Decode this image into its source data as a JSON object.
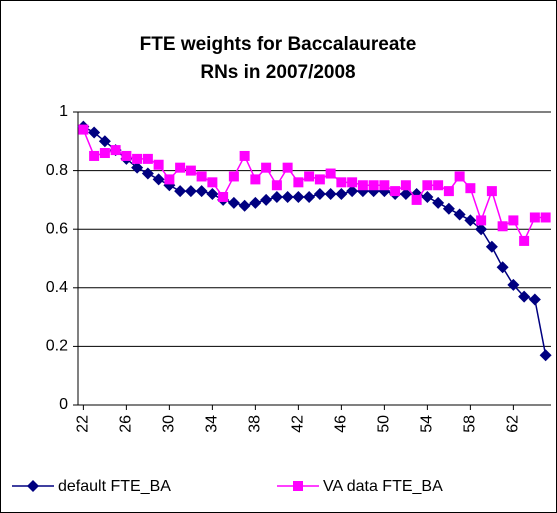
{
  "chart_data": {
    "type": "line",
    "title": [
      "FTE weights for Baccalaureate",
      "RNs in 2007/2008"
    ],
    "x": [
      22,
      23,
      24,
      25,
      26,
      27,
      28,
      29,
      30,
      31,
      32,
      33,
      34,
      35,
      36,
      37,
      38,
      39,
      40,
      41,
      42,
      43,
      44,
      45,
      46,
      47,
      48,
      49,
      50,
      51,
      52,
      53,
      54,
      55,
      56,
      57,
      58,
      59,
      60,
      61,
      62,
      63,
      64,
      65
    ],
    "series": [
      {
        "name": "default FTE_BA",
        "color": "#000080",
        "marker": "diamond",
        "values": [
          0.95,
          0.93,
          0.9,
          0.87,
          0.84,
          0.81,
          0.79,
          0.77,
          0.75,
          0.73,
          0.73,
          0.73,
          0.72,
          0.7,
          0.69,
          0.68,
          0.69,
          0.7,
          0.71,
          0.71,
          0.71,
          0.71,
          0.72,
          0.72,
          0.72,
          0.73,
          0.73,
          0.73,
          0.73,
          0.72,
          0.72,
          0.72,
          0.71,
          0.69,
          0.67,
          0.65,
          0.63,
          0.6,
          0.54,
          0.47,
          0.41,
          0.37,
          0.36,
          0.17
        ]
      },
      {
        "name": "VA data FTE_BA",
        "color": "#ff00ff",
        "marker": "square",
        "values": [
          0.94,
          0.85,
          0.86,
          0.87,
          0.85,
          0.84,
          0.84,
          0.82,
          0.77,
          0.81,
          0.8,
          0.78,
          0.76,
          0.71,
          0.78,
          0.85,
          0.77,
          0.81,
          0.75,
          0.81,
          0.76,
          0.78,
          0.77,
          0.79,
          0.76,
          0.76,
          0.75,
          0.75,
          0.75,
          0.73,
          0.75,
          0.7,
          0.75,
          0.75,
          0.73,
          0.78,
          0.74,
          0.63,
          0.73,
          0.61,
          0.63,
          0.56,
          0.64,
          0.64
        ]
      }
    ],
    "xlim": [
      21.5,
      65.5
    ],
    "xticks": [
      22,
      26,
      30,
      34,
      38,
      42,
      46,
      50,
      54,
      58,
      62
    ],
    "ylim": [
      0,
      1
    ],
    "yticks": [
      0,
      0.2,
      0.4,
      0.6,
      0.8,
      1
    ],
    "grid": true,
    "legend": "bottom"
  }
}
